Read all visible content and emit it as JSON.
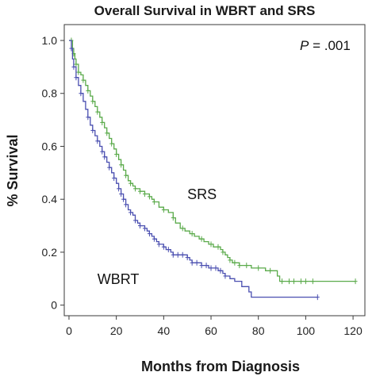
{
  "chart_data": {
    "type": "line",
    "title": "Overall Survival in WBRT and SRS",
    "xlabel": "Months from Diagnosis",
    "ylabel": "% Survival",
    "xlim": [
      -2,
      125
    ],
    "ylim": [
      -0.04,
      1.06
    ],
    "xticks": [
      "0",
      "20",
      "40",
      "60",
      "80",
      "100",
      "120"
    ],
    "yticks": [
      "0",
      "0.2",
      "0.4",
      "0.6",
      "0.8",
      "1.0"
    ],
    "annotation": {
      "prefix": "P",
      "text": " = .001"
    },
    "grid": false,
    "series": [
      {
        "name": "SRS",
        "color": "#5aaa4a",
        "step": [
          [
            0,
            1.0
          ],
          [
            1,
            1.0
          ],
          [
            1.5,
            0.97
          ],
          [
            2,
            0.95
          ],
          [
            2.5,
            0.93
          ],
          [
            3,
            0.91
          ],
          [
            4,
            0.88
          ],
          [
            5,
            0.87
          ],
          [
            6,
            0.85
          ],
          [
            7,
            0.83
          ],
          [
            8,
            0.81
          ],
          [
            9,
            0.79
          ],
          [
            10,
            0.77
          ],
          [
            11,
            0.75
          ],
          [
            12,
            0.73
          ],
          [
            13,
            0.71
          ],
          [
            14,
            0.69
          ],
          [
            15,
            0.67
          ],
          [
            16,
            0.65
          ],
          [
            17,
            0.63
          ],
          [
            18,
            0.61
          ],
          [
            19,
            0.59
          ],
          [
            20,
            0.57
          ],
          [
            21,
            0.55
          ],
          [
            22,
            0.53
          ],
          [
            23,
            0.51
          ],
          [
            24,
            0.49
          ],
          [
            25,
            0.47
          ],
          [
            26,
            0.46
          ],
          [
            27,
            0.45
          ],
          [
            28,
            0.44
          ],
          [
            30,
            0.43
          ],
          [
            32,
            0.42
          ],
          [
            34,
            0.41
          ],
          [
            35,
            0.4
          ],
          [
            36,
            0.39
          ],
          [
            38,
            0.37
          ],
          [
            40,
            0.36
          ],
          [
            42,
            0.35
          ],
          [
            44,
            0.33
          ],
          [
            45,
            0.31
          ],
          [
            47,
            0.29
          ],
          [
            49,
            0.28
          ],
          [
            51,
            0.27
          ],
          [
            53,
            0.26
          ],
          [
            55,
            0.25
          ],
          [
            57,
            0.24
          ],
          [
            59,
            0.23
          ],
          [
            61,
            0.22
          ],
          [
            64,
            0.21
          ],
          [
            65,
            0.2
          ],
          [
            66,
            0.19
          ],
          [
            67,
            0.18
          ],
          [
            68,
            0.17
          ],
          [
            69,
            0.16
          ],
          [
            72,
            0.15
          ],
          [
            77,
            0.14
          ],
          [
            83,
            0.13
          ],
          [
            88,
            0.11
          ],
          [
            89,
            0.09
          ],
          [
            121,
            0.09
          ]
        ],
        "censor": [
          1,
          2,
          3,
          4,
          6,
          8,
          10,
          12,
          14,
          16,
          18,
          20,
          22,
          24,
          26,
          28,
          30,
          32,
          34,
          36,
          40,
          44,
          48,
          52,
          56,
          60,
          63,
          65,
          68,
          70,
          72,
          75,
          80,
          85,
          90,
          93,
          95,
          98,
          100,
          103,
          121
        ]
      },
      {
        "name": "WBRT",
        "color": "#4a4fb0",
        "step": [
          [
            0,
            1.0
          ],
          [
            1,
            0.97
          ],
          [
            1.5,
            0.93
          ],
          [
            2,
            0.9
          ],
          [
            3,
            0.86
          ],
          [
            4,
            0.83
          ],
          [
            5,
            0.8
          ],
          [
            6,
            0.77
          ],
          [
            7,
            0.74
          ],
          [
            8,
            0.71
          ],
          [
            9,
            0.68
          ],
          [
            10,
            0.66
          ],
          [
            11,
            0.64
          ],
          [
            12,
            0.62
          ],
          [
            13,
            0.6
          ],
          [
            14,
            0.58
          ],
          [
            15,
            0.56
          ],
          [
            16,
            0.54
          ],
          [
            17,
            0.52
          ],
          [
            18,
            0.5
          ],
          [
            19,
            0.48
          ],
          [
            20,
            0.46
          ],
          [
            21,
            0.44
          ],
          [
            22,
            0.42
          ],
          [
            23,
            0.4
          ],
          [
            24,
            0.38
          ],
          [
            25,
            0.36
          ],
          [
            26,
            0.35
          ],
          [
            27,
            0.34
          ],
          [
            28,
            0.32
          ],
          [
            29,
            0.31
          ],
          [
            30,
            0.3
          ],
          [
            32,
            0.29
          ],
          [
            33,
            0.28
          ],
          [
            34,
            0.27
          ],
          [
            35,
            0.26
          ],
          [
            36,
            0.25
          ],
          [
            37,
            0.24
          ],
          [
            38,
            0.23
          ],
          [
            40,
            0.22
          ],
          [
            41,
            0.21
          ],
          [
            43,
            0.2
          ],
          [
            44,
            0.19
          ],
          [
            50,
            0.18
          ],
          [
            51,
            0.17
          ],
          [
            52,
            0.16
          ],
          [
            56,
            0.15
          ],
          [
            59,
            0.14
          ],
          [
            63,
            0.13
          ],
          [
            65,
            0.12
          ],
          [
            66,
            0.11
          ],
          [
            68,
            0.1
          ],
          [
            70,
            0.09
          ],
          [
            73,
            0.07
          ],
          [
            76,
            0.05
          ],
          [
            77,
            0.03
          ],
          [
            105,
            0.03
          ]
        ],
        "censor": [
          1,
          2,
          3,
          5,
          8,
          10,
          12,
          14,
          15,
          17,
          19,
          21,
          22,
          23,
          24,
          26,
          28,
          30,
          32,
          34,
          36,
          38,
          40,
          42,
          44,
          46,
          48,
          50,
          52,
          54,
          56,
          58,
          60,
          62,
          64,
          66,
          105
        ]
      }
    ],
    "series_labels": [
      {
        "text": "SRS",
        "x": 50,
        "y": 0.4
      },
      {
        "text": "WBRT",
        "x": 12,
        "y": 0.08
      }
    ]
  }
}
